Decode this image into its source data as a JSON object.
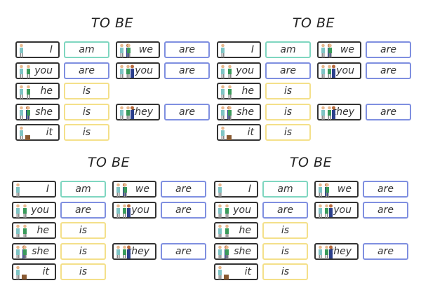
{
  "title": "TO BE",
  "colors": {
    "am": "#7fd6c0",
    "are": "#7f8fe0",
    "is": "#f4e08a"
  },
  "rows": [
    {
      "pronoun": "I",
      "icon": "person-self-icon",
      "verb": "am",
      "vcolor": "am",
      "col": 0,
      "row": 0
    },
    {
      "pronoun": "you",
      "icon": "person-pointing-other-icon",
      "verb": "are",
      "vcolor": "are",
      "col": 0,
      "row": 1
    },
    {
      "pronoun": "he",
      "icon": "person-pointing-man-icon",
      "verb": "is",
      "vcolor": "is",
      "col": 0,
      "row": 2
    },
    {
      "pronoun": "she",
      "icon": "person-pointing-woman-icon",
      "verb": "is",
      "vcolor": "is",
      "col": 0,
      "row": 3
    },
    {
      "pronoun": "it",
      "icon": "person-pointing-box-icon",
      "verb": "is",
      "vcolor": "is",
      "col": 0,
      "row": 4
    },
    {
      "pronoun": "we",
      "icon": "person-with-woman-icon",
      "verb": "are",
      "vcolor": "are",
      "col": 1,
      "row": 0
    },
    {
      "pronoun": "you",
      "icon": "person-pointing-group-icon",
      "verb": "are",
      "vcolor": "are",
      "col": 1,
      "row": 1
    },
    {
      "pronoun": "they",
      "icon": "person-pointing-couple-icon",
      "verb": "are",
      "vcolor": "are",
      "col": 1,
      "row": 3
    }
  ],
  "panels": [
    "top-left",
    "top-right",
    "bottom-left",
    "bottom-right"
  ]
}
